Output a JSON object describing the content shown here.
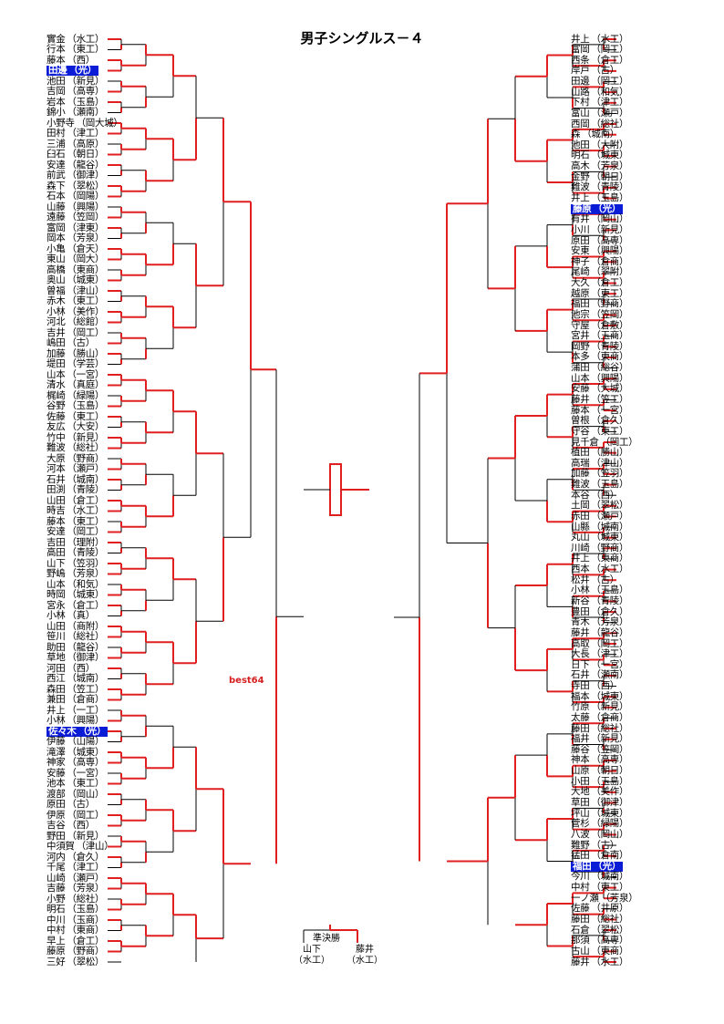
{
  "title": "男子シングルス－４",
  "note": "best64",
  "colors": {
    "win": "#e02020",
    "loss": "#000000",
    "highlight": "#0a1cd6"
  },
  "left_players": [
    {
      "name": "實金",
      "school": "（水工）"
    },
    {
      "name": "行本",
      "school": "（東工）"
    },
    {
      "name": "藤本",
      "school": "（西）"
    },
    {
      "name": "田邊",
      "school": "（光）",
      "hl": true
    },
    {
      "name": "池田",
      "school": "（新見）"
    },
    {
      "name": "吉岡",
      "school": "（高専）"
    },
    {
      "name": "岩本",
      "school": "（玉島）"
    },
    {
      "name": "錦小",
      "school": "（瀬南）"
    },
    {
      "name": "小野寺",
      "school": "（岡大城）"
    },
    {
      "name": "田村",
      "school": "（津工）"
    },
    {
      "name": "三浦",
      "school": "（高原）"
    },
    {
      "name": "臼石",
      "school": "（朝日）"
    },
    {
      "name": "安達",
      "school": "（龍谷）"
    },
    {
      "name": "前武",
      "school": "（御津）"
    },
    {
      "name": "森下",
      "school": "（翠松）"
    },
    {
      "name": "石本",
      "school": "（岡陽）"
    },
    {
      "name": "山藤",
      "school": "（興陽）"
    },
    {
      "name": "遠藤",
      "school": "（笠岡）"
    },
    {
      "name": "富岡",
      "school": "（津東）"
    },
    {
      "name": "岡本",
      "school": "（芳泉）"
    },
    {
      "name": "小亀",
      "school": "（倉天）"
    },
    {
      "name": "東山",
      "school": "（岡大）"
    },
    {
      "name": "高橋",
      "school": "（東商）"
    },
    {
      "name": "奥山",
      "school": "（城東）"
    },
    {
      "name": "曽福",
      "school": "（津山）"
    },
    {
      "name": "赤木",
      "school": "（東工）"
    },
    {
      "name": "小林",
      "school": "（美作）"
    },
    {
      "name": "河北",
      "school": "（総館）"
    },
    {
      "name": "吉井",
      "school": "（岡工）"
    },
    {
      "name": "嶋田",
      "school": "（古）"
    },
    {
      "name": "加藤",
      "school": "（勝山）"
    },
    {
      "name": "堤田",
      "school": "（学芸）"
    },
    {
      "name": "山本",
      "school": "（一宮）"
    },
    {
      "name": "清水",
      "school": "（真庭）"
    },
    {
      "name": "梶崎",
      "school": "（緑陽）"
    },
    {
      "name": "谷野",
      "school": "（玉島）"
    },
    {
      "name": "佐藤",
      "school": "（東工）"
    },
    {
      "name": "友広",
      "school": "（大安）"
    },
    {
      "name": "竹中",
      "school": "（新見）"
    },
    {
      "name": "難波",
      "school": "（総社）"
    },
    {
      "name": "大原",
      "school": "（野商）"
    },
    {
      "name": "河本",
      "school": "（瀬戸）"
    },
    {
      "name": "石井",
      "school": "（城南）"
    },
    {
      "name": "田渕",
      "school": "（青陵）"
    },
    {
      "name": "山田",
      "school": "（倉工）"
    },
    {
      "name": "時吉",
      "school": "（水工）"
    },
    {
      "name": "藤本",
      "school": "（東工）"
    },
    {
      "name": "安達",
      "school": "（岡工）"
    },
    {
      "name": "吉田",
      "school": "（理附）"
    },
    {
      "name": "高田",
      "school": "（青陵）"
    },
    {
      "name": "山下",
      "school": "（笠羽）"
    },
    {
      "name": "野嶋",
      "school": "（芳泉）"
    },
    {
      "name": "山本",
      "school": "（和気）"
    },
    {
      "name": "時岡",
      "school": "（城東）"
    },
    {
      "name": "宮永",
      "school": "（倉工）"
    },
    {
      "name": "小林",
      "school": "（真）"
    },
    {
      "name": "山田",
      "school": "（商附）"
    },
    {
      "name": "笹川",
      "school": "（総社）"
    },
    {
      "name": "助田",
      "school": "（龍谷）"
    },
    {
      "name": "草地",
      "school": "（御津）"
    },
    {
      "name": "河田",
      "school": "（西）"
    },
    {
      "name": "西江",
      "school": "（城南）"
    },
    {
      "name": "森田",
      "school": "（笠工）"
    },
    {
      "name": "兼田",
      "school": "（倉商）"
    },
    {
      "name": "井上",
      "school": "（一工）"
    },
    {
      "name": "小林",
      "school": "（興陽）"
    },
    {
      "name": "佐々木",
      "school": "（光）",
      "hl": true
    },
    {
      "name": "伊藤",
      "school": "（山陽）"
    },
    {
      "name": "滝澤",
      "school": "（城東）"
    },
    {
      "name": "神家",
      "school": "（高専）"
    },
    {
      "name": "安藤",
      "school": "（一宮）"
    },
    {
      "name": "池本",
      "school": "（東工）"
    },
    {
      "name": "渡部",
      "school": "（岡山）"
    },
    {
      "name": "原田",
      "school": "（古）"
    },
    {
      "name": "伊原",
      "school": "（岡工）"
    },
    {
      "name": "吉谷",
      "school": "（西）"
    },
    {
      "name": "野田",
      "school": "（新見）"
    },
    {
      "name": "中須賀",
      "school": "（津山）"
    },
    {
      "name": "河内",
      "school": "（倉久）"
    },
    {
      "name": "千尾",
      "school": "（津工）"
    },
    {
      "name": "山崎",
      "school": "（瀬戸）"
    },
    {
      "name": "吉藤",
      "school": "（芳泉）"
    },
    {
      "name": "小野",
      "school": "（総社）"
    },
    {
      "name": "明石",
      "school": "（玉島）"
    },
    {
      "name": "中川",
      "school": "（玉商）"
    },
    {
      "name": "中村",
      "school": "（東商）"
    },
    {
      "name": "早上",
      "school": "（倉工）"
    },
    {
      "name": "藤原",
      "school": "（野商）"
    },
    {
      "name": "三好",
      "school": "（翠松）"
    }
  ],
  "right_players": [
    {
      "name": "井上",
      "school": "（水工）"
    },
    {
      "name": "富岡",
      "school": "（岡工）"
    },
    {
      "name": "西条",
      "school": "（倉工）"
    },
    {
      "name": "岸戸",
      "school": "（古）"
    },
    {
      "name": "田邊",
      "school": "（岡工）"
    },
    {
      "name": "山路",
      "school": "（和気）"
    },
    {
      "name": "下村",
      "school": "（津工）"
    },
    {
      "name": "富山",
      "school": "（瀬戸）"
    },
    {
      "name": "西岡",
      "school": "（総社）"
    },
    {
      "name": "森",
      "school": "（城南）"
    },
    {
      "name": "池田",
      "school": "（大附）"
    },
    {
      "name": "明石",
      "school": "（城東）"
    },
    {
      "name": "高木",
      "school": "（芳泉）"
    },
    {
      "name": "金野",
      "school": "（朝日）"
    },
    {
      "name": "難波",
      "school": "（青陵）"
    },
    {
      "name": "井上",
      "school": "（玉島）"
    },
    {
      "name": "藤原",
      "school": "（光）",
      "hl": true
    },
    {
      "name": "有井",
      "school": "（岡山）"
    },
    {
      "name": "小川",
      "school": "（新見）"
    },
    {
      "name": "原田",
      "school": "（高専）"
    },
    {
      "name": "安東",
      "school": "（興陽）"
    },
    {
      "name": "神子",
      "school": "（倉商）"
    },
    {
      "name": "尾崎",
      "school": "（翠附）"
    },
    {
      "name": "大久",
      "school": "（倉工）"
    },
    {
      "name": "越原",
      "school": "（東工）"
    },
    {
      "name": "福田",
      "school": "（野商）"
    },
    {
      "name": "池宗",
      "school": "（笠岡）"
    },
    {
      "name": "守屋",
      "school": "（倉敷）"
    },
    {
      "name": "宮井",
      "school": "（玉商）"
    },
    {
      "name": "岡野",
      "school": "（青陵）"
    },
    {
      "name": "本多",
      "school": "（東商）"
    },
    {
      "name": "蒲田",
      "school": "（総谷）"
    },
    {
      "name": "山本",
      "school": "（興陽）"
    },
    {
      "name": "安藤",
      "school": "（大城）"
    },
    {
      "name": "藤井",
      "school": "（笠工）"
    },
    {
      "name": "藤本",
      "school": "（一宮）"
    },
    {
      "name": "曽根",
      "school": "（倉久）"
    },
    {
      "name": "守谷",
      "school": "（東工）"
    },
    {
      "name": "見千倉",
      "school": "（岡工）"
    },
    {
      "name": "植田",
      "school": "（勝山）"
    },
    {
      "name": "高瑞",
      "school": "（津山）"
    },
    {
      "name": "加藤",
      "school": "（笠羽）"
    },
    {
      "name": "難波",
      "school": "（玉島）"
    },
    {
      "name": "本谷",
      "school": "（西）"
    },
    {
      "name": "土岡",
      "school": "（翠松）"
    },
    {
      "name": "赤田",
      "school": "（瀬戸）"
    },
    {
      "name": "山縣",
      "school": "（城南）"
    },
    {
      "name": "丸山",
      "school": "（城東）"
    },
    {
      "name": "川崎",
      "school": "（野商）"
    },
    {
      "name": "井上",
      "school": "（東商）"
    },
    {
      "name": "西本",
      "school": "（水工）"
    },
    {
      "name": "松井",
      "school": "（古）"
    },
    {
      "name": "小林",
      "school": "（玉島）"
    },
    {
      "name": "新谷",
      "school": "（青陵）"
    },
    {
      "name": "豊田",
      "school": "（倉久）"
    },
    {
      "name": "青木",
      "school": "（芳泉）"
    },
    {
      "name": "藤井",
      "school": "（龍谷）"
    },
    {
      "name": "高取",
      "school": "（岡工）"
    },
    {
      "name": "大長",
      "school": "（津工）"
    },
    {
      "name": "日下",
      "school": "（一宮）"
    },
    {
      "name": "石井",
      "school": "（瀬南）"
    },
    {
      "name": "寺田",
      "school": "（西）"
    },
    {
      "name": "福本",
      "school": "（城東）"
    },
    {
      "name": "竹原",
      "school": "（新見）"
    },
    {
      "name": "太藤",
      "school": "（倉商）"
    },
    {
      "name": "藤田",
      "school": "（総社）"
    },
    {
      "name": "福井",
      "school": "（新見）"
    },
    {
      "name": "藤谷",
      "school": "（笠岡）"
    },
    {
      "name": "神本",
      "school": "（高専）"
    },
    {
      "name": "山原",
      "school": "（朝日）"
    },
    {
      "name": "小田",
      "school": "（玉島）"
    },
    {
      "name": "大地",
      "school": "（美作）"
    },
    {
      "name": "草田",
      "school": "（御津）"
    },
    {
      "name": "坪山",
      "school": "（城東）"
    },
    {
      "name": "菅杉",
      "school": "（緑陽）"
    },
    {
      "name": "八波",
      "school": "（岡山）"
    },
    {
      "name": "難野",
      "school": "（古）"
    },
    {
      "name": "猛田",
      "school": "（倉南）"
    },
    {
      "name": "福田",
      "school": "（光）",
      "hl": true
    },
    {
      "name": "今川",
      "school": "（城南）"
    },
    {
      "name": "中村",
      "school": "（東工）"
    },
    {
      "name": "一ノ瀬",
      "school": "（芳泉）"
    },
    {
      "name": "佐藤",
      "school": "（井原）"
    },
    {
      "name": "藤田",
      "school": "（総社）"
    },
    {
      "name": "石倉",
      "school": "（翠松）"
    },
    {
      "name": "那須",
      "school": "（高専）"
    },
    {
      "name": "古山",
      "school": "（東商）"
    },
    {
      "name": "藤井",
      "school": "（水工）"
    }
  ],
  "final": {
    "label": "準決勝",
    "left_name": "山下",
    "left_school": "（水工）",
    "right_name": "藤井",
    "right_school": "（水工）"
  }
}
